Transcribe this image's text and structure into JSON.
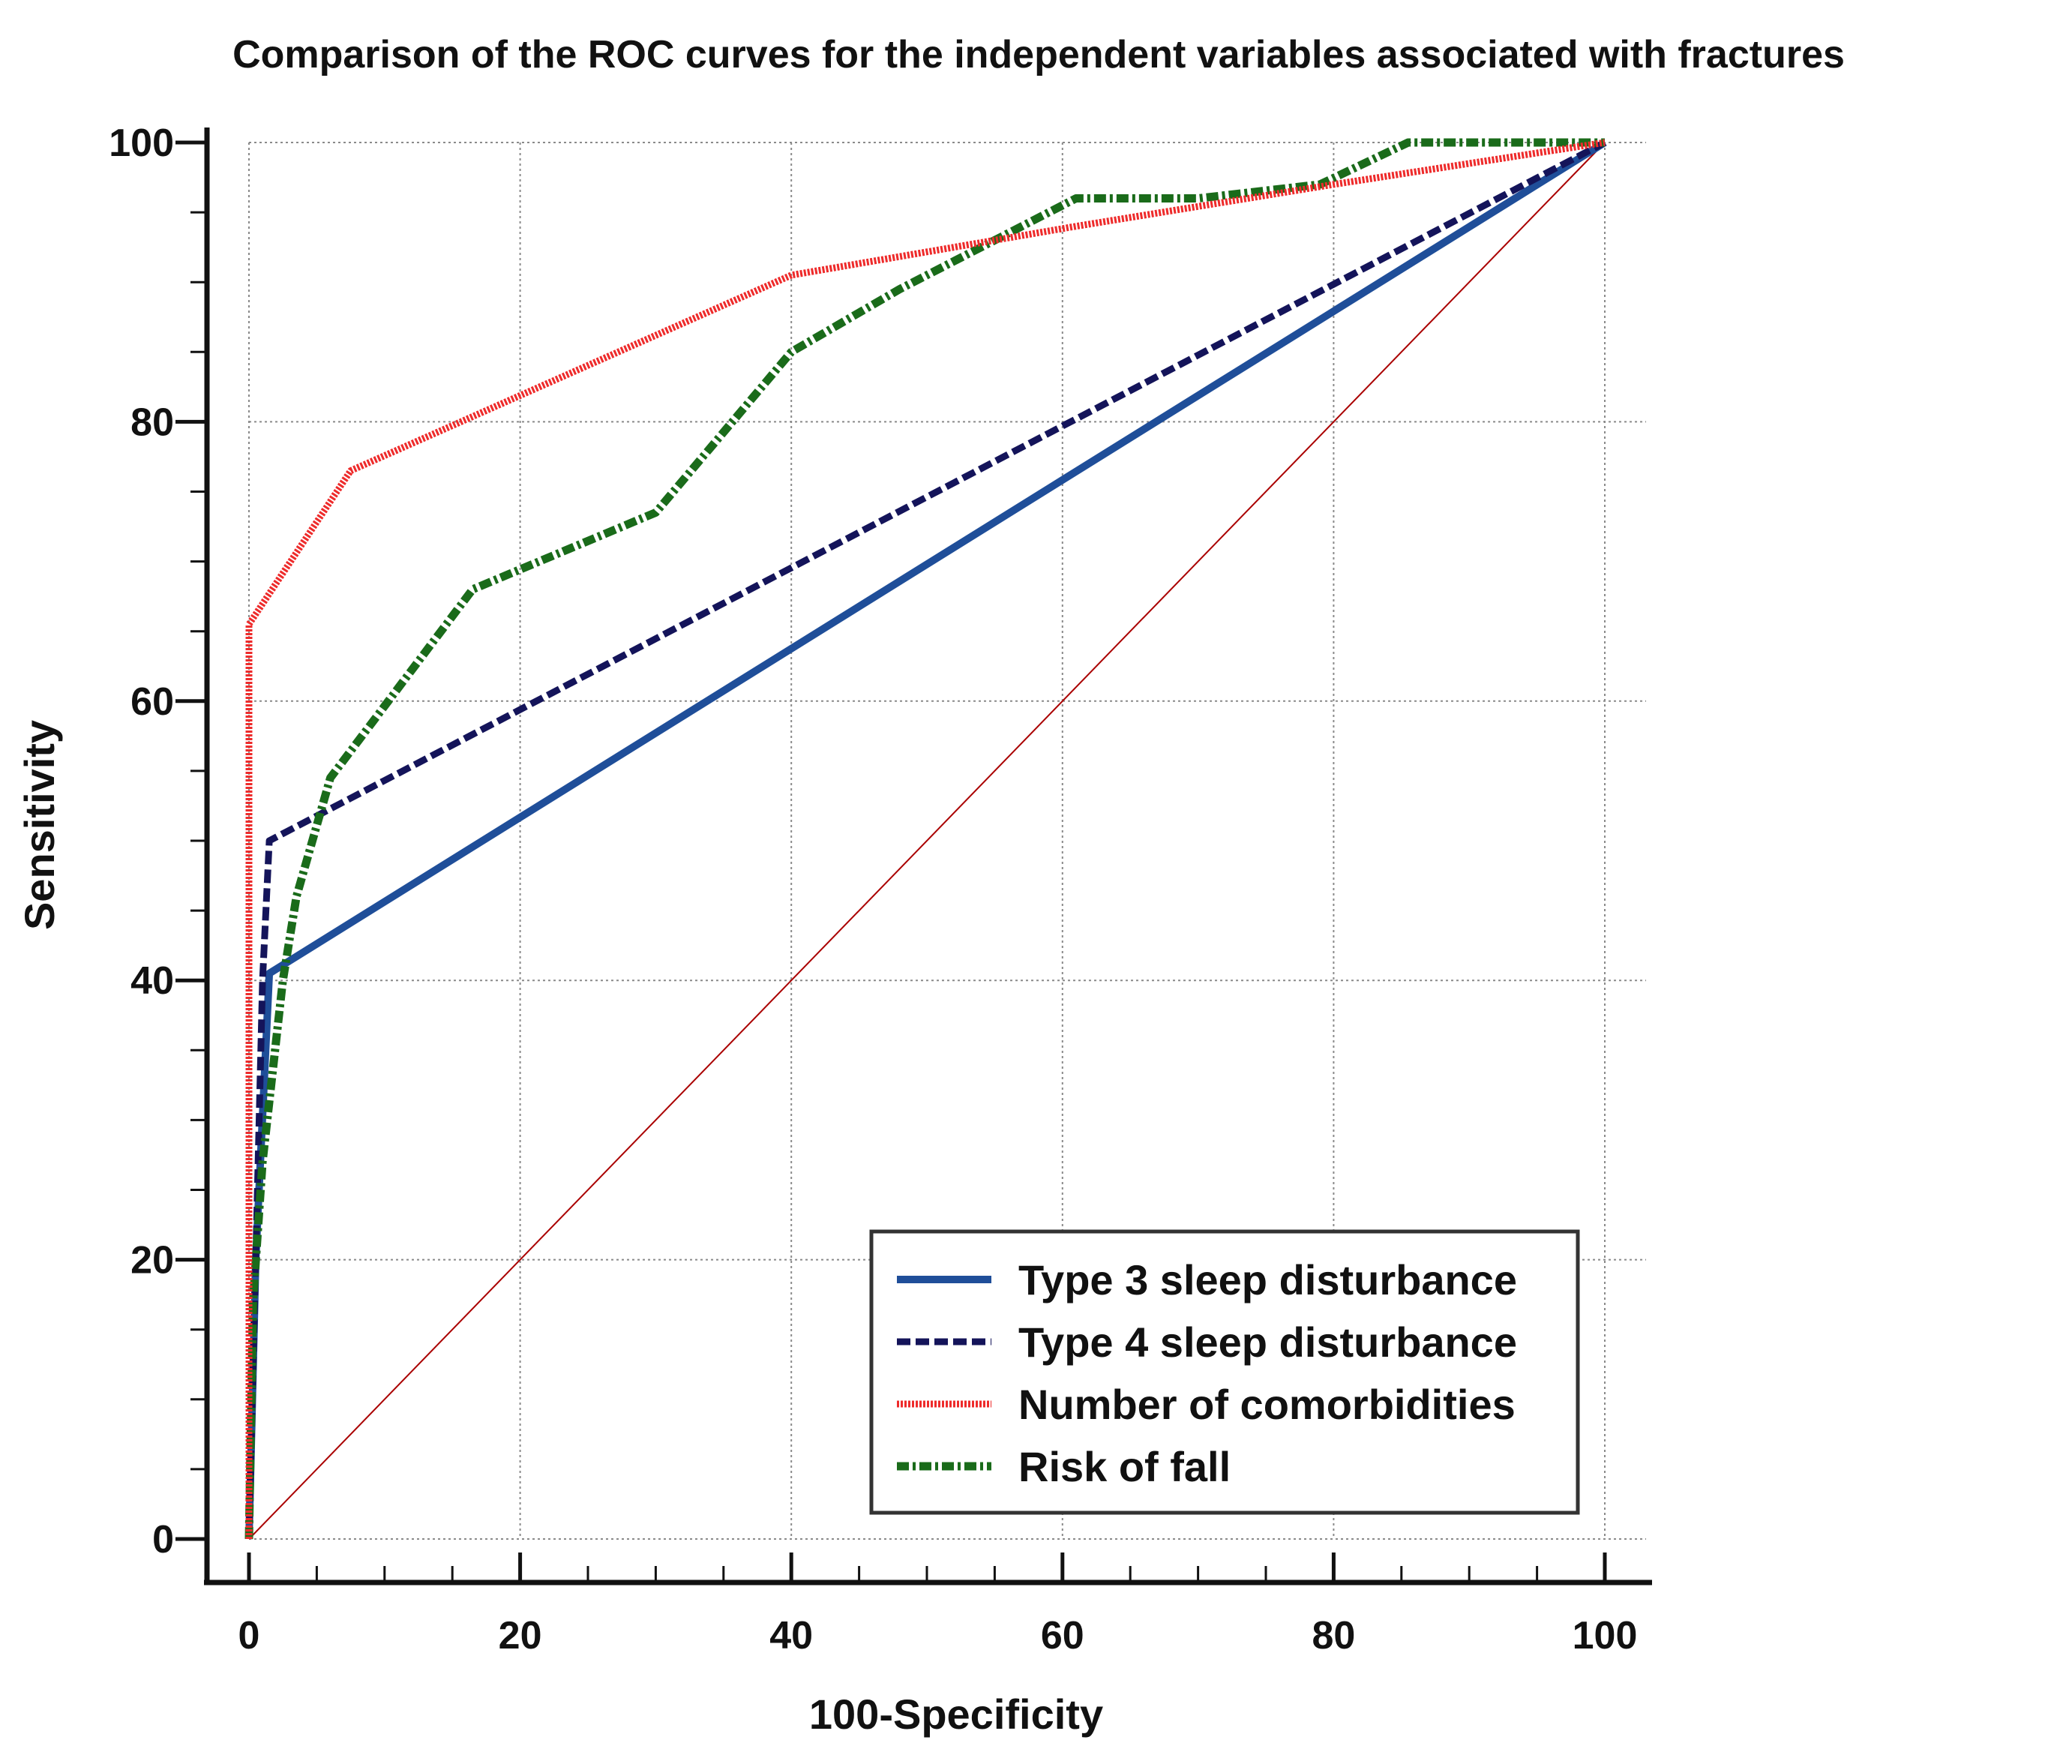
{
  "chart_data": {
    "type": "line",
    "title": "Comparison of the ROC curves for the independent variables associated with fractures",
    "xlabel": "100-Specificity",
    "ylabel": "Sensitivity",
    "xlim": [
      0,
      100
    ],
    "ylim": [
      0,
      100
    ],
    "xticks": [
      0,
      20,
      40,
      60,
      80,
      100
    ],
    "yticks": [
      0,
      20,
      40,
      60,
      80,
      100
    ],
    "grid": true,
    "legend_position": "bottom-right",
    "reference_line": {
      "name": "Chance line",
      "x": [
        0,
        100
      ],
      "y": [
        0,
        100
      ],
      "color": "#aa0000"
    },
    "series": [
      {
        "name": "Type 3 sleep disturbance",
        "color": "#1f4e99",
        "style": "solid",
        "x": [
          0,
          0.5,
          1.5,
          100
        ],
        "y": [
          0,
          20,
          40.5,
          100
        ]
      },
      {
        "name": "Type 4 sleep disturbance",
        "color": "#14145a",
        "style": "dashed",
        "x": [
          0,
          0.5,
          1.0,
          1.5,
          100
        ],
        "y": [
          0,
          20,
          40,
          50,
          100
        ]
      },
      {
        "name": "Number of comorbidities",
        "color": "#ee2b2b",
        "style": "dotted",
        "x": [
          0,
          0,
          0,
          7.5,
          40,
          61,
          80,
          100
        ],
        "y": [
          0,
          27,
          65.5,
          76.5,
          90.5,
          94,
          97,
          100
        ]
      },
      {
        "name": "Risk of fall",
        "color": "#1a6b1a",
        "style": "dashdot",
        "x": [
          0,
          0.3,
          1,
          2.5,
          3.5,
          6,
          16.5,
          30,
          40,
          48,
          61,
          70,
          79,
          85.5,
          100
        ],
        "y": [
          0,
          17,
          27,
          40,
          46,
          54.5,
          68,
          73.5,
          85,
          89.5,
          96,
          96,
          97,
          100,
          100
        ]
      }
    ]
  }
}
